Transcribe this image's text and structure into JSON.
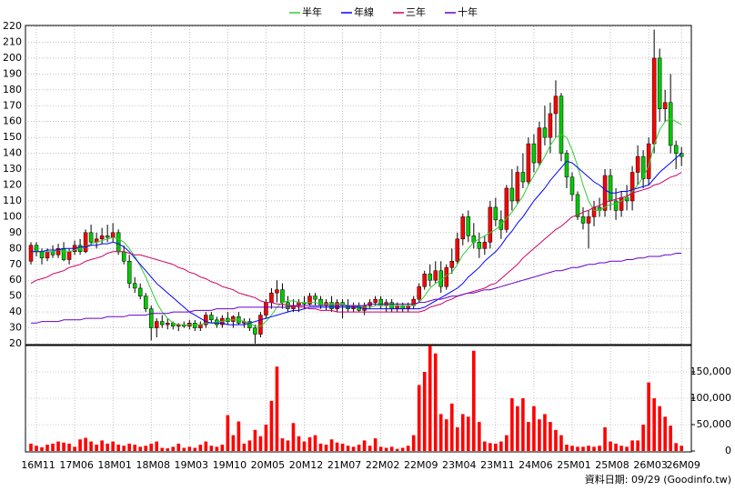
{
  "chart_data": {
    "type": "candlestick",
    "legend": "top",
    "grid": true,
    "categories": [
      null,
      "16M11",
      null,
      null,
      null,
      null,
      null,
      null,
      "17M06",
      null,
      null,
      null,
      null,
      null,
      null,
      "18M01",
      null,
      null,
      null,
      null,
      null,
      null,
      "18M08",
      null,
      null,
      null,
      null,
      null,
      null,
      "19M03",
      null,
      null,
      null,
      null,
      null,
      null,
      "19M10",
      null,
      null,
      null,
      null,
      null,
      null,
      "20M05",
      null,
      null,
      null,
      null,
      null,
      null,
      "20M12",
      null,
      null,
      null,
      null,
      null,
      null,
      "21M07",
      null,
      null,
      null,
      null,
      null,
      null,
      "22M02",
      null,
      null,
      null,
      null,
      null,
      null,
      "22M09",
      null,
      null,
      null,
      null,
      null,
      null,
      "23M04",
      null,
      null,
      null,
      null,
      null,
      null,
      "23M11",
      null,
      null,
      null,
      null,
      null,
      null,
      "24M06",
      null,
      null,
      null,
      null,
      null,
      null,
      "25M01",
      null,
      null,
      null,
      null,
      null,
      null,
      "25M08",
      null,
      null,
      null,
      null,
      null,
      null,
      "26M03",
      null,
      null,
      null,
      null,
      null,
      "26M09"
    ],
    "ohlc": [
      [
        72,
        84,
        70,
        82
      ],
      [
        82,
        84,
        75,
        78
      ],
      [
        78,
        80,
        70,
        74
      ],
      [
        74,
        80,
        72,
        78
      ],
      [
        78,
        82,
        74,
        76
      ],
      [
        76,
        83,
        74,
        80
      ],
      [
        80,
        84,
        72,
        73
      ],
      [
        73,
        80,
        70,
        78
      ],
      [
        78,
        85,
        76,
        82
      ],
      [
        82,
        86,
        76,
        78
      ],
      [
        78,
        92,
        77,
        90
      ],
      [
        90,
        95,
        82,
        84
      ],
      [
        84,
        90,
        80,
        86
      ],
      [
        86,
        93,
        83,
        88
      ],
      [
        88,
        95,
        84,
        87
      ],
      [
        87,
        96,
        84,
        90
      ],
      [
        90,
        92,
        76,
        78
      ],
      [
        78,
        82,
        70,
        72
      ],
      [
        72,
        76,
        55,
        58
      ],
      [
        58,
        62,
        52,
        55
      ],
      [
        55,
        58,
        48,
        50
      ],
      [
        50,
        52,
        40,
        42
      ],
      [
        42,
        44,
        22,
        30
      ],
      [
        30,
        36,
        24,
        34
      ],
      [
        34,
        38,
        30,
        32
      ],
      [
        32,
        36,
        29,
        33
      ],
      [
        33,
        34,
        29,
        31
      ],
      [
        31,
        33,
        28,
        32
      ],
      [
        32,
        34,
        30,
        31
      ],
      [
        31,
        35,
        29,
        33
      ],
      [
        33,
        35,
        28,
        30
      ],
      [
        30,
        34,
        28,
        32
      ],
      [
        32,
        40,
        30,
        38
      ],
      [
        38,
        40,
        33,
        35
      ],
      [
        35,
        37,
        30,
        32
      ],
      [
        32,
        38,
        30,
        36
      ],
      [
        36,
        40,
        32,
        34
      ],
      [
        34,
        38,
        30,
        37
      ],
      [
        37,
        40,
        32,
        33
      ],
      [
        33,
        36,
        30,
        34
      ],
      [
        34,
        36,
        28,
        30
      ],
      [
        30,
        32,
        20,
        26
      ],
      [
        26,
        40,
        24,
        38
      ],
      [
        38,
        48,
        36,
        46
      ],
      [
        46,
        55,
        42,
        52
      ],
      [
        52,
        60,
        46,
        54
      ],
      [
        54,
        58,
        42,
        46
      ],
      [
        46,
        50,
        40,
        42
      ],
      [
        42,
        48,
        40,
        44
      ],
      [
        44,
        48,
        40,
        46
      ],
      [
        46,
        50,
        42,
        45
      ],
      [
        45,
        52,
        44,
        50
      ],
      [
        50,
        52,
        44,
        48
      ],
      [
        48,
        50,
        42,
        44
      ],
      [
        44,
        48,
        41,
        46
      ],
      [
        46,
        50,
        40,
        42
      ],
      [
        42,
        48,
        40,
        46
      ],
      [
        46,
        48,
        36,
        44
      ],
      [
        44,
        48,
        40,
        42
      ],
      [
        42,
        46,
        40,
        44
      ],
      [
        44,
        46,
        40,
        41
      ],
      [
        41,
        46,
        38,
        44
      ],
      [
        44,
        48,
        42,
        46
      ],
      [
        46,
        50,
        44,
        48
      ],
      [
        48,
        50,
        42,
        44
      ],
      [
        44,
        48,
        40,
        46
      ],
      [
        46,
        48,
        40,
        42
      ],
      [
        42,
        46,
        40,
        44
      ],
      [
        44,
        46,
        40,
        42
      ],
      [
        42,
        46,
        40,
        44
      ],
      [
        44,
        50,
        42,
        48
      ],
      [
        48,
        58,
        46,
        56
      ],
      [
        56,
        66,
        54,
        64
      ],
      [
        64,
        70,
        56,
        60
      ],
      [
        60,
        72,
        58,
        66
      ],
      [
        66,
        72,
        52,
        56
      ],
      [
        56,
        70,
        54,
        68
      ],
      [
        68,
        80,
        64,
        72
      ],
      [
        72,
        90,
        70,
        86
      ],
      [
        86,
        102,
        82,
        100
      ],
      [
        100,
        104,
        84,
        88
      ],
      [
        88,
        96,
        80,
        84
      ],
      [
        84,
        90,
        74,
        80
      ],
      [
        80,
        88,
        76,
        84
      ],
      [
        84,
        110,
        80,
        106
      ],
      [
        106,
        112,
        94,
        98
      ],
      [
        98,
        104,
        86,
        92
      ],
      [
        92,
        120,
        90,
        118
      ],
      [
        118,
        130,
        104,
        110
      ],
      [
        110,
        132,
        108,
        128
      ],
      [
        128,
        140,
        118,
        122
      ],
      [
        122,
        150,
        120,
        146
      ],
      [
        146,
        152,
        128,
        134
      ],
      [
        134,
        160,
        132,
        156
      ],
      [
        156,
        170,
        145,
        150
      ],
      [
        150,
        172,
        140,
        165
      ],
      [
        165,
        186,
        150,
        176
      ],
      [
        176,
        178,
        135,
        140
      ],
      [
        140,
        142,
        118,
        125
      ],
      [
        125,
        128,
        110,
        114
      ],
      [
        114,
        116,
        98,
        100
      ],
      [
        100,
        106,
        92,
        96
      ],
      [
        96,
        104,
        80,
        100
      ],
      [
        100,
        110,
        94,
        106
      ],
      [
        106,
        112,
        100,
        104
      ],
      [
        104,
        130,
        100,
        126
      ],
      [
        126,
        130,
        104,
        110
      ],
      [
        110,
        118,
        98,
        104
      ],
      [
        104,
        116,
        100,
        112
      ],
      [
        112,
        120,
        104,
        110
      ],
      [
        110,
        132,
        104,
        128
      ],
      [
        128,
        145,
        120,
        138
      ],
      [
        138,
        142,
        118,
        124
      ],
      [
        124,
        150,
        120,
        146
      ],
      [
        146,
        218,
        140,
        200
      ],
      [
        200,
        206,
        160,
        168
      ],
      [
        168,
        180,
        160,
        172
      ],
      [
        172,
        190,
        140,
        145
      ],
      [
        145,
        148,
        130,
        140
      ],
      [
        140,
        144,
        132,
        138
      ]
    ],
    "up_color": "#ff0000",
    "down_color": "#00cc00",
    "ylim": [
      20,
      220
    ],
    "yticks": [
      20,
      30,
      40,
      50,
      60,
      70,
      80,
      90,
      100,
      110,
      120,
      130,
      140,
      150,
      160,
      170,
      180,
      190,
      200,
      210,
      220
    ],
    "series": [
      {
        "name": "半年",
        "color": "#33cc33",
        "values": [
          78,
          78,
          78,
          78,
          78,
          79,
          78,
          78,
          79,
          80,
          81,
          83,
          84,
          85,
          86,
          87,
          86,
          84,
          80,
          75,
          69,
          62,
          54,
          46,
          40,
          36,
          33,
          32,
          32,
          32,
          32,
          32,
          33,
          33,
          34,
          34,
          35,
          35,
          35,
          34,
          33,
          31,
          31,
          34,
          38,
          43,
          46,
          47,
          47,
          46,
          46,
          46,
          46,
          45,
          45,
          45,
          45,
          45,
          44,
          44,
          43,
          43,
          43,
          44,
          44,
          44,
          44,
          44,
          44,
          44,
          44,
          46,
          50,
          55,
          58,
          60,
          63,
          65,
          70,
          76,
          80,
          84,
          86,
          88,
          90,
          92,
          95,
          99,
          103,
          108,
          113,
          120,
          126,
          132,
          138,
          145,
          150,
          152,
          150,
          142,
          132,
          120,
          110,
          104,
          104,
          106,
          108,
          108,
          110,
          112,
          116,
          120,
          125,
          132,
          145,
          155,
          160,
          162,
          160,
          158
        ]
      },
      {
        "name": "年線",
        "color": "#0000ff",
        "values": [
          78,
          78,
          78,
          79,
          79,
          79,
          80,
          80,
          80,
          81,
          81,
          82,
          82,
          83,
          83,
          84,
          83,
          81,
          78,
          74,
          70,
          66,
          62,
          58,
          55,
          52,
          49,
          46,
          43,
          40,
          38,
          36,
          34,
          33,
          33,
          33,
          32,
          32,
          32,
          32,
          33,
          34,
          35,
          36,
          37,
          38,
          39,
          40,
          41,
          41,
          42,
          43,
          43,
          43,
          43,
          43,
          43,
          43,
          43,
          43,
          43,
          42,
          42,
          42,
          42,
          42,
          42,
          42,
          42,
          42,
          42,
          42,
          43,
          45,
          47,
          49,
          51,
          53,
          55,
          58,
          62,
          65,
          68,
          72,
          75,
          78,
          82,
          87,
          91,
          96,
          100,
          105,
          110,
          114,
          118,
          123,
          127,
          131,
          135,
          134,
          131,
          128,
          125,
          122,
          120,
          117,
          115,
          115,
          116,
          116,
          117,
          118,
          119,
          120,
          124,
          128,
          131,
          134,
          137,
          140
        ]
      },
      {
        "name": "三年",
        "color": "#cc0066",
        "values": [
          58,
          60,
          61,
          62,
          64,
          65,
          66,
          68,
          69,
          70,
          72,
          73,
          74,
          75,
          77,
          78,
          78,
          78,
          77,
          76,
          76,
          75,
          74,
          73,
          72,
          71,
          70,
          68,
          67,
          65,
          64,
          62,
          61,
          59,
          58,
          56,
          55,
          54,
          52,
          51,
          50,
          49,
          47,
          46,
          46,
          45,
          45,
          44,
          44,
          43,
          43,
          42,
          42,
          41,
          41,
          41,
          40,
          40,
          40,
          40,
          40,
          40,
          40,
          40,
          40,
          40,
          40,
          40,
          40,
          40,
          40,
          40,
          41,
          43,
          44,
          45,
          47,
          48,
          50,
          51,
          52,
          53,
          54,
          55,
          57,
          58,
          61,
          64,
          67,
          70,
          74,
          77,
          80,
          83,
          86,
          89,
          92,
          94,
          97,
          100,
          101,
          103,
          104,
          106,
          107,
          109,
          110,
          111,
          112,
          113,
          115,
          116,
          117,
          118,
          120,
          121,
          123,
          125,
          126,
          128
        ]
      },
      {
        "name": "十年",
        "color": "#6600cc",
        "values": [
          33,
          33,
          34,
          34,
          34,
          34,
          35,
          35,
          35,
          35,
          36,
          36,
          36,
          36,
          37,
          37,
          37,
          37,
          38,
          38,
          38,
          38,
          39,
          39,
          39,
          39,
          40,
          40,
          40,
          40,
          41,
          41,
          41,
          41,
          42,
          42,
          42,
          42,
          43,
          43,
          43,
          43,
          43,
          43,
          43,
          43,
          43,
          43,
          44,
          44,
          44,
          44,
          44,
          44,
          44,
          44,
          44,
          44,
          44,
          44,
          44,
          44,
          45,
          45,
          45,
          45,
          45,
          45,
          45,
          45,
          45,
          46,
          46,
          47,
          48,
          48,
          49,
          50,
          50,
          51,
          52,
          52,
          53,
          54,
          54,
          55,
          56,
          57,
          58,
          59,
          60,
          61,
          62,
          63,
          64,
          65,
          66,
          66,
          67,
          68,
          68,
          69,
          70,
          70,
          71,
          71,
          72,
          72,
          72,
          73,
          73,
          74,
          74,
          75,
          75,
          75,
          76,
          76,
          77,
          77
        ]
      }
    ],
    "volume": {
      "color": "#ff0000",
      "values": [
        14000,
        10000,
        7000,
        12000,
        14000,
        18000,
        16000,
        14000,
        8000,
        22000,
        25000,
        18000,
        12000,
        20000,
        14000,
        18000,
        12000,
        10000,
        14000,
        12000,
        8000,
        10000,
        14000,
        18000,
        6000,
        5000,
        8000,
        14000,
        6000,
        8000,
        6000,
        12000,
        18000,
        10000,
        8000,
        12000,
        68000,
        30000,
        56000,
        14000,
        20000,
        40000,
        28000,
        50000,
        95000,
        160000,
        24000,
        20000,
        53000,
        28000,
        18000,
        26000,
        30000,
        14000,
        12000,
        22000,
        16000,
        14000,
        10000,
        8000,
        12000,
        20000,
        10000,
        24000,
        8000,
        6000,
        8000,
        4000,
        6000,
        10000,
        30000,
        125000,
        150000,
        200000,
        185000,
        70000,
        60000,
        90000,
        45000,
        70000,
        65000,
        190000,
        55000,
        18000,
        15000,
        14000,
        18000,
        30000,
        100000,
        85000,
        100000,
        55000,
        85000,
        60000,
        70000,
        55000,
        40000,
        30000,
        12000,
        10000,
        8000,
        8000,
        10000,
        8000,
        10000,
        45000,
        18000,
        14000,
        10000,
        8000,
        20000,
        20000,
        50000,
        130000,
        100000,
        85000,
        65000,
        48000,
        15000,
        10000
      ],
      "y2lim": [
        0,
        200000
      ],
      "y2ticks": [
        0,
        {
          "value": 50000,
          "label": "50,000"
        },
        {
          "value": 100000,
          "label": "100,000"
        },
        {
          "value": 150000,
          "label": "150,000"
        }
      ]
    },
    "source": "資料日期: 09/29 (Goodinfo.tw)"
  }
}
